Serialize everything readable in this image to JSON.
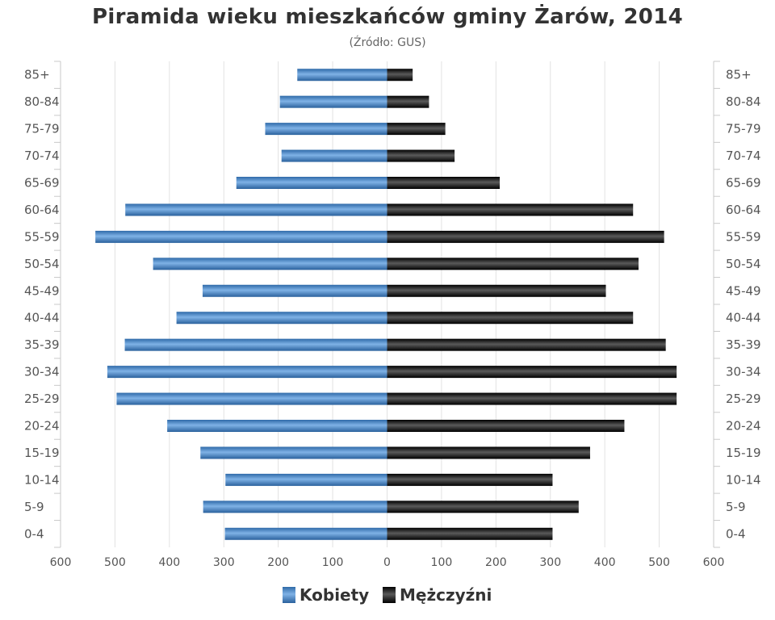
{
  "chart_data": {
    "type": "bar",
    "title": "Piramida wieku mieszkańców gminy Żarów, 2014",
    "subtitle": "(Źródło: GUS)",
    "categories": [
      "85+",
      "80-84",
      "75-79",
      "70-74",
      "65-69",
      "60-64",
      "55-59",
      "50-54",
      "45-49",
      "40-44",
      "35-39",
      "30-34",
      "25-29",
      "20-24",
      "15-19",
      "10-14",
      "5-9",
      "0-4"
    ],
    "series": [
      {
        "name": "Kobiety",
        "color": "#4a87c8",
        "values": [
          165,
          197,
          224,
          194,
          277,
          481,
          536,
          430,
          339,
          387,
          482,
          514,
          497,
          404,
          343,
          297,
          338,
          298
        ]
      },
      {
        "name": "Mężczyźni",
        "color": "#222222",
        "values": [
          47,
          77,
          107,
          124,
          207,
          452,
          509,
          462,
          402,
          452,
          512,
          532,
          532,
          436,
          373,
          304,
          352,
          304
        ]
      }
    ],
    "xlim": [
      -600,
      600
    ],
    "xticks": [
      "600",
      "500",
      "400",
      "300",
      "200",
      "100",
      "0",
      "100",
      "200",
      "300",
      "400",
      "500",
      "600"
    ],
    "orientation": "horizontal-diverging",
    "grid": "vertical",
    "legend_position": "bottom-center"
  }
}
